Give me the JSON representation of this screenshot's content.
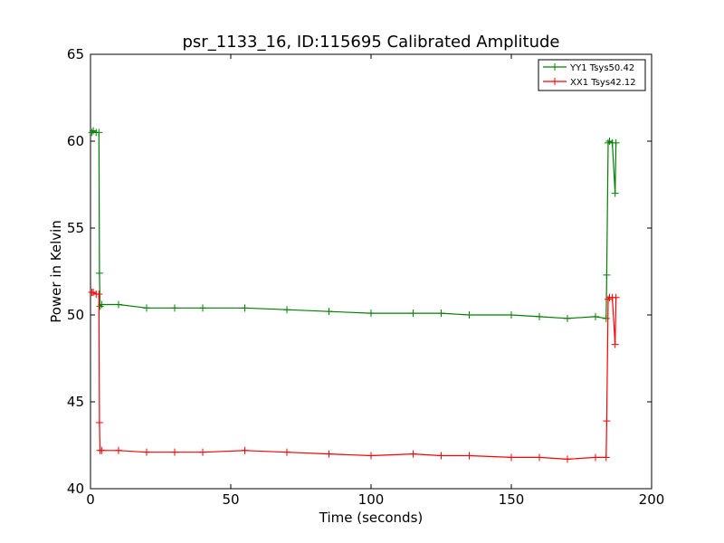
{
  "chart_data": {
    "type": "line",
    "title": "psr_1133_16, ID:115695 Calibrated Amplitude",
    "xlabel": "Time (seconds)",
    "ylabel": "Power in Kelvin",
    "xlim": [
      0,
      200
    ],
    "ylim": [
      40,
      65
    ],
    "xticks": [
      0,
      50,
      100,
      150,
      200
    ],
    "yticks": [
      40,
      45,
      50,
      55,
      60,
      65
    ],
    "grid": false,
    "legend_position": "top-right",
    "series": [
      {
        "name": "YY1 Tsys50.42",
        "color": "#008000",
        "marker": "+",
        "x": [
          0.5,
          1,
          2,
          3,
          3.2,
          3.4,
          4,
          10,
          20,
          30,
          40,
          55,
          70,
          85,
          100,
          115,
          125,
          135,
          150,
          160,
          170,
          180,
          183.8,
          184,
          184.5,
          185,
          186,
          187,
          187.3
        ],
        "y": [
          60.5,
          60.6,
          60.5,
          60.5,
          52.4,
          50.5,
          50.6,
          50.6,
          50.4,
          50.4,
          50.4,
          50.4,
          50.3,
          50.2,
          50.1,
          50.1,
          50.1,
          50.0,
          50.0,
          49.9,
          49.8,
          49.9,
          49.8,
          52.3,
          59.9,
          60.0,
          59.9,
          57.0,
          59.9
        ]
      },
      {
        "name": "XX1 Tsys42.12",
        "color": "#ff0000",
        "marker": "+",
        "x": [
          0.5,
          1,
          2,
          3,
          3.2,
          3.4,
          4,
          10,
          20,
          30,
          40,
          55,
          70,
          85,
          100,
          115,
          125,
          135,
          150,
          160,
          170,
          180,
          183.8,
          184,
          184.5,
          185,
          186,
          187,
          187.3
        ],
        "y": [
          51.3,
          51.3,
          51.2,
          51.2,
          43.8,
          42.2,
          42.2,
          42.2,
          42.1,
          42.1,
          42.1,
          42.2,
          42.1,
          42.0,
          41.9,
          42.0,
          41.9,
          41.9,
          41.8,
          41.8,
          41.7,
          41.8,
          41.8,
          43.9,
          50.9,
          51.0,
          51.0,
          48.3,
          51.0
        ]
      }
    ]
  }
}
